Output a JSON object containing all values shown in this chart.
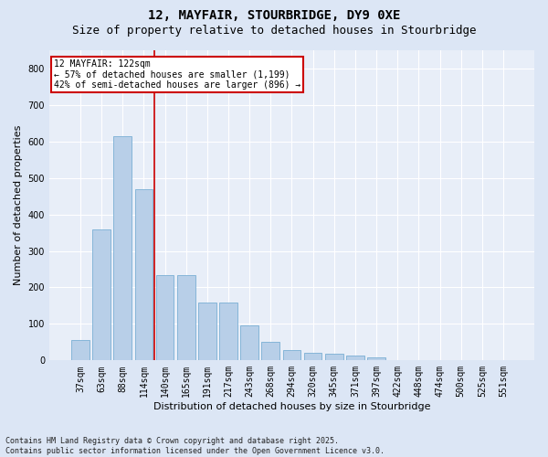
{
  "title": "12, MAYFAIR, STOURBRIDGE, DY9 0XE",
  "subtitle": "Size of property relative to detached houses in Stourbridge",
  "xlabel": "Distribution of detached houses by size in Stourbridge",
  "ylabel": "Number of detached properties",
  "categories": [
    "37sqm",
    "63sqm",
    "88sqm",
    "114sqm",
    "140sqm",
    "165sqm",
    "191sqm",
    "217sqm",
    "243sqm",
    "268sqm",
    "294sqm",
    "320sqm",
    "345sqm",
    "371sqm",
    "397sqm",
    "422sqm",
    "448sqm",
    "474sqm",
    "500sqm",
    "525sqm",
    "551sqm"
  ],
  "values": [
    55,
    360,
    615,
    470,
    235,
    235,
    158,
    158,
    97,
    50,
    28,
    22,
    18,
    13,
    9,
    1,
    1,
    1,
    1,
    1,
    1
  ],
  "bar_color": "#b8cfe8",
  "bar_edge_color": "#7aafd4",
  "vline_color": "#cc0000",
  "vline_x_index": 3.5,
  "annotation_text": "12 MAYFAIR: 122sqm\n← 57% of detached houses are smaller (1,199)\n42% of semi-detached houses are larger (896) →",
  "annotation_box_edgecolor": "#cc0000",
  "bg_color": "#dce6f5",
  "plot_bg_color": "#e8eef8",
  "grid_color": "#ffffff",
  "footer": "Contains HM Land Registry data © Crown copyright and database right 2025.\nContains public sector information licensed under the Open Government Licence v3.0.",
  "ylim": [
    0,
    850
  ],
  "yticks": [
    0,
    100,
    200,
    300,
    400,
    500,
    600,
    700,
    800
  ],
  "title_fontsize": 10,
  "subtitle_fontsize": 9,
  "axis_label_fontsize": 8,
  "tick_fontsize": 7,
  "footer_fontsize": 6
}
